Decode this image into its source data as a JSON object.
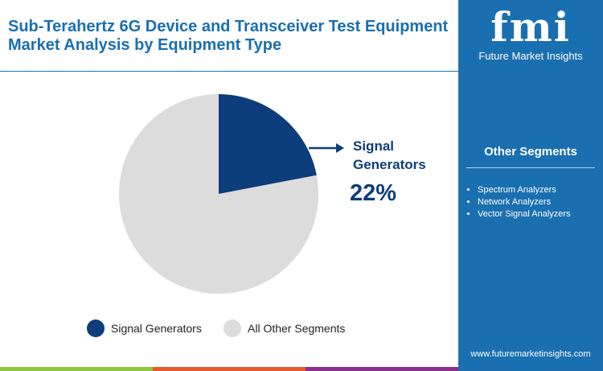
{
  "title": "Sub-Terahertz 6G Device and Transceiver Test Equipment Market Analysis by Equipment Type",
  "logo": {
    "text": "fmi",
    "subtitle": "Future Market Insights"
  },
  "sidebar": {
    "heading": "Other Segments",
    "items": [
      "Spectrum Analyzers",
      "Network Analyzers",
      "Vector Signal Analyzers"
    ],
    "url": "www.futuremarketinsights.com"
  },
  "colors": {
    "primary": "#0d3d7a",
    "other": "#dcdcdc",
    "sidebar": "#1a6fb0"
  },
  "chart_data": {
    "type": "pie",
    "slices": [
      {
        "name": "Signal Generators",
        "value": 22,
        "color": "#0d3d7a"
      },
      {
        "name": "All Other Segments",
        "value": 78,
        "color": "#dcdcdc"
      }
    ],
    "callout": {
      "label": "Signal Generators",
      "value": "22%"
    },
    "legend": [
      "Signal Generators",
      "All Other Segments"
    ],
    "legend_position": "bottom"
  }
}
